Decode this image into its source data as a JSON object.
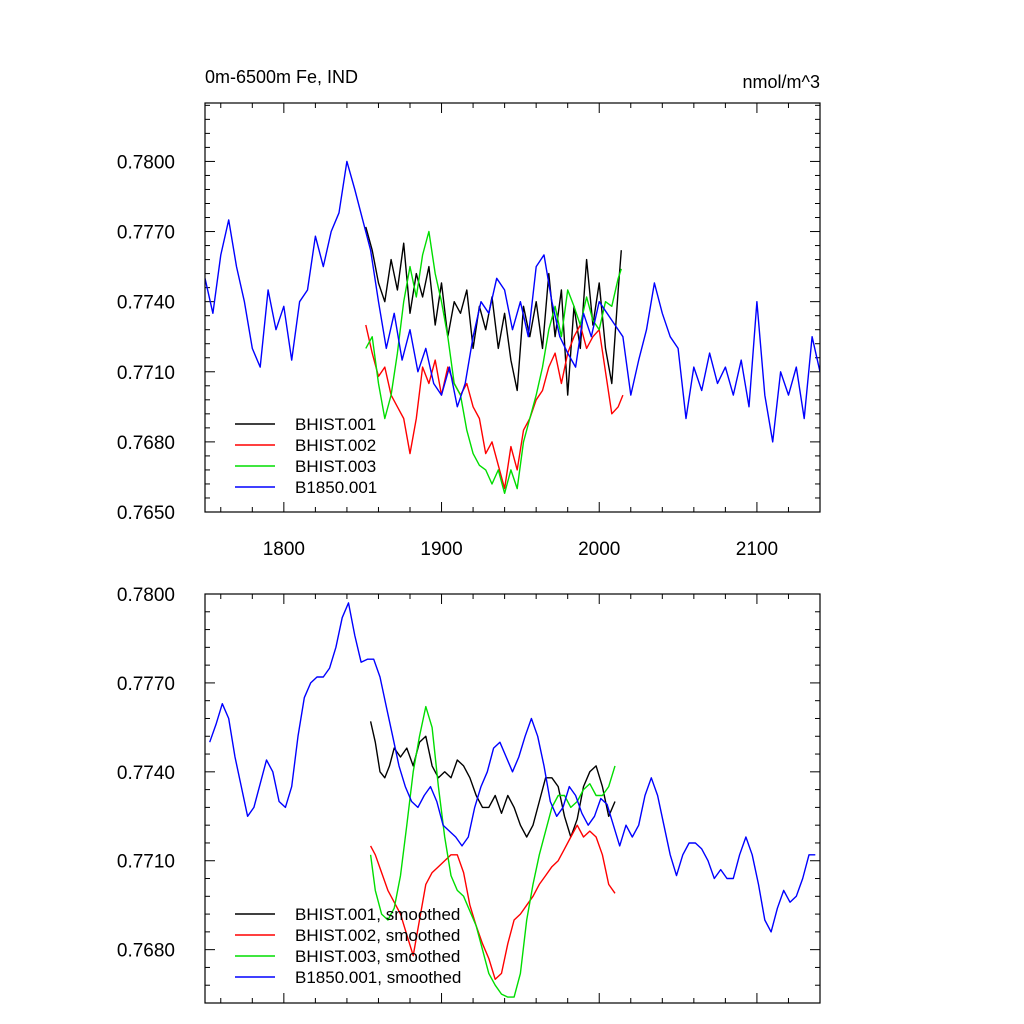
{
  "chart_data": [
    {
      "type": "line",
      "title": "0m-6500m Fe, IND",
      "units": "nmol/m^3",
      "xlim": [
        1750,
        2140
      ],
      "ylim": [
        0.765,
        0.7825
      ],
      "x_ticks": [
        1800,
        1900,
        2000,
        2100
      ],
      "x_tick_labels": [
        "1800",
        "1900",
        "2000",
        "2100"
      ],
      "y_ticks": [
        0.765,
        0.768,
        0.771,
        0.774,
        0.777,
        0.78
      ],
      "y_tick_labels": [
        "0.7650",
        "0.7680",
        "0.7710",
        "0.7740",
        "0.7770",
        "0.7800"
      ],
      "legend_position": "bottom-left",
      "series": [
        {
          "name": "BHIST.001",
          "color": "#000000",
          "x": [
            1852,
            1856,
            1860,
            1864,
            1868,
            1872,
            1876,
            1880,
            1884,
            1888,
            1892,
            1896,
            1900,
            1904,
            1908,
            1912,
            1916,
            1920,
            1924,
            1928,
            1932,
            1936,
            1940,
            1944,
            1948,
            1952,
            1956,
            1960,
            1964,
            1968,
            1972,
            1976,
            1980,
            1984,
            1988,
            1992,
            1996,
            2000,
            2004,
            2008,
            2012,
            2014
          ],
          "values": [
            0.7772,
            0.7762,
            0.7748,
            0.774,
            0.7758,
            0.7745,
            0.7765,
            0.7735,
            0.7752,
            0.7742,
            0.7755,
            0.773,
            0.7748,
            0.7725,
            0.774,
            0.7735,
            0.7745,
            0.772,
            0.7738,
            0.7728,
            0.7742,
            0.772,
            0.7735,
            0.7715,
            0.7702,
            0.7738,
            0.7725,
            0.774,
            0.772,
            0.7752,
            0.7725,
            0.7745,
            0.77,
            0.7738,
            0.772,
            0.7758,
            0.773,
            0.7748,
            0.772,
            0.7705,
            0.7745,
            0.7762
          ]
        },
        {
          "name": "BHIST.002",
          "color": "#ff0000",
          "x": [
            1852,
            1856,
            1860,
            1864,
            1868,
            1872,
            1876,
            1880,
            1884,
            1888,
            1892,
            1896,
            1900,
            1904,
            1908,
            1912,
            1916,
            1920,
            1924,
            1928,
            1932,
            1936,
            1940,
            1944,
            1948,
            1952,
            1956,
            1960,
            1964,
            1968,
            1972,
            1976,
            1980,
            1984,
            1988,
            1992,
            1996,
            2000,
            2004,
            2008,
            2012,
            2015
          ],
          "values": [
            0.773,
            0.7718,
            0.7708,
            0.7712,
            0.77,
            0.7695,
            0.769,
            0.7675,
            0.769,
            0.7712,
            0.7705,
            0.7715,
            0.77,
            0.7712,
            0.7705,
            0.77,
            0.7705,
            0.7695,
            0.769,
            0.7675,
            0.768,
            0.767,
            0.766,
            0.7678,
            0.7668,
            0.7685,
            0.769,
            0.7698,
            0.7702,
            0.7712,
            0.7718,
            0.7705,
            0.7718,
            0.7725,
            0.773,
            0.772,
            0.7725,
            0.7728,
            0.771,
            0.7692,
            0.7695,
            0.77
          ]
        },
        {
          "name": "BHIST.003",
          "color": "#00dd00",
          "x": [
            1852,
            1856,
            1860,
            1864,
            1868,
            1872,
            1876,
            1880,
            1884,
            1888,
            1892,
            1896,
            1900,
            1904,
            1908,
            1912,
            1916,
            1920,
            1924,
            1928,
            1932,
            1936,
            1940,
            1944,
            1948,
            1952,
            1956,
            1960,
            1964,
            1968,
            1972,
            1976,
            1980,
            1984,
            1988,
            1992,
            1996,
            2000,
            2004,
            2008,
            2012,
            2014
          ],
          "values": [
            0.772,
            0.7725,
            0.7705,
            0.769,
            0.77,
            0.7718,
            0.774,
            0.7755,
            0.7742,
            0.776,
            0.777,
            0.7752,
            0.774,
            0.7725,
            0.7705,
            0.77,
            0.7685,
            0.7675,
            0.767,
            0.7668,
            0.7662,
            0.7668,
            0.7658,
            0.7668,
            0.766,
            0.768,
            0.769,
            0.77,
            0.7712,
            0.7728,
            0.7738,
            0.7725,
            0.7745,
            0.7738,
            0.773,
            0.7742,
            0.7732,
            0.7728,
            0.774,
            0.7738,
            0.775,
            0.7754
          ]
        },
        {
          "name": "B1850.001",
          "color": "#0000ff",
          "x": [
            1750,
            1755,
            1760,
            1765,
            1770,
            1775,
            1780,
            1785,
            1790,
            1795,
            1800,
            1805,
            1810,
            1815,
            1820,
            1825,
            1830,
            1835,
            1840,
            1845,
            1850,
            1855,
            1860,
            1865,
            1870,
            1875,
            1880,
            1885,
            1890,
            1895,
            1900,
            1905,
            1910,
            1915,
            1920,
            1925,
            1930,
            1935,
            1940,
            1945,
            1950,
            1955,
            1960,
            1965,
            1970,
            1975,
            1980,
            1985,
            1990,
            1995,
            2000,
            2005,
            2010,
            2015,
            2020,
            2025,
            2030,
            2035,
            2040,
            2045,
            2050,
            2055,
            2060,
            2065,
            2070,
            2075,
            2080,
            2085,
            2090,
            2095,
            2100,
            2105,
            2110,
            2115,
            2120,
            2125,
            2130,
            2135,
            2140
          ],
          "values": [
            0.775,
            0.7735,
            0.776,
            0.7775,
            0.7755,
            0.774,
            0.772,
            0.7712,
            0.7745,
            0.7728,
            0.7738,
            0.7715,
            0.774,
            0.7745,
            0.7768,
            0.7755,
            0.777,
            0.7778,
            0.78,
            0.7788,
            0.7775,
            0.7762,
            0.774,
            0.772,
            0.7735,
            0.7715,
            0.7728,
            0.771,
            0.772,
            0.7705,
            0.77,
            0.7712,
            0.7695,
            0.7705,
            0.7725,
            0.774,
            0.7735,
            0.775,
            0.7745,
            0.7728,
            0.774,
            0.7725,
            0.7755,
            0.776,
            0.774,
            0.7725,
            0.7718,
            0.7712,
            0.7735,
            0.7725,
            0.774,
            0.7735,
            0.773,
            0.7725,
            0.77,
            0.7715,
            0.7728,
            0.7748,
            0.7735,
            0.7725,
            0.772,
            0.769,
            0.7712,
            0.7702,
            0.7718,
            0.7705,
            0.7712,
            0.77,
            0.7715,
            0.7695,
            0.774,
            0.77,
            0.768,
            0.771,
            0.77,
            0.7712,
            0.769,
            0.7725,
            0.771
          ]
        }
      ]
    },
    {
      "type": "line",
      "xlim": [
        1750,
        2140
      ],
      "ylim": [
        0.7662,
        0.78
      ],
      "x_ticks": [
        1800,
        1900,
        2000,
        2100
      ],
      "y_ticks": [
        0.768,
        0.771,
        0.774,
        0.777,
        0.78
      ],
      "y_tick_labels": [
        "0.7680",
        "0.7710",
        "0.7740",
        "0.7770",
        "0.7800"
      ],
      "legend_position": "bottom-left",
      "series": [
        {
          "name": "BHIST.001, smoothed",
          "color": "#000000",
          "x": [
            1855,
            1858,
            1861,
            1864,
            1867,
            1870,
            1874,
            1878,
            1882,
            1886,
            1890,
            1894,
            1898,
            1902,
            1906,
            1910,
            1914,
            1918,
            1922,
            1926,
            1930,
            1934,
            1938,
            1942,
            1946,
            1950,
            1954,
            1958,
            1962,
            1966,
            1970,
            1974,
            1978,
            1982,
            1986,
            1990,
            1994,
            1998,
            2002,
            2006,
            2010
          ],
          "values": [
            0.7757,
            0.775,
            0.774,
            0.7738,
            0.7742,
            0.7748,
            0.7745,
            0.7748,
            0.7742,
            0.775,
            0.7752,
            0.7742,
            0.7738,
            0.774,
            0.7738,
            0.7744,
            0.7742,
            0.7738,
            0.7732,
            0.7728,
            0.7728,
            0.7732,
            0.7726,
            0.7732,
            0.7728,
            0.7722,
            0.7718,
            0.7722,
            0.773,
            0.7738,
            0.7738,
            0.7735,
            0.7725,
            0.7718,
            0.7724,
            0.7735,
            0.774,
            0.7742,
            0.7735,
            0.7725,
            0.773
          ]
        },
        {
          "name": "BHIST.002, smoothed",
          "color": "#ff0000",
          "x": [
            1855,
            1858,
            1862,
            1866,
            1870,
            1874,
            1878,
            1882,
            1886,
            1890,
            1894,
            1898,
            1902,
            1906,
            1910,
            1914,
            1918,
            1922,
            1926,
            1930,
            1934,
            1938,
            1942,
            1946,
            1950,
            1954,
            1958,
            1962,
            1966,
            1970,
            1974,
            1978,
            1982,
            1986,
            1990,
            1994,
            1998,
            2002,
            2006,
            2010
          ],
          "values": [
            0.7715,
            0.7712,
            0.7706,
            0.77,
            0.7696,
            0.7692,
            0.7685,
            0.7678,
            0.769,
            0.7702,
            0.7706,
            0.7708,
            0.771,
            0.7712,
            0.7712,
            0.7706,
            0.7695,
            0.7688,
            0.7682,
            0.7677,
            0.767,
            0.7672,
            0.7682,
            0.769,
            0.7692,
            0.7695,
            0.7698,
            0.7702,
            0.7705,
            0.7708,
            0.771,
            0.7714,
            0.7718,
            0.7722,
            0.7718,
            0.772,
            0.7718,
            0.7712,
            0.7702,
            0.7699
          ]
        },
        {
          "name": "BHIST.003, smoothed",
          "color": "#00dd00",
          "x": [
            1855,
            1858,
            1862,
            1866,
            1870,
            1874,
            1878,
            1882,
            1886,
            1890,
            1894,
            1898,
            1902,
            1906,
            1910,
            1914,
            1918,
            1922,
            1926,
            1930,
            1934,
            1938,
            1942,
            1946,
            1950,
            1954,
            1958,
            1962,
            1966,
            1970,
            1974,
            1978,
            1982,
            1986,
            1990,
            1994,
            1998,
            2002,
            2006,
            2010
          ],
          "values": [
            0.7712,
            0.77,
            0.7692,
            0.769,
            0.7694,
            0.7705,
            0.7722,
            0.774,
            0.7752,
            0.7762,
            0.7755,
            0.7735,
            0.7718,
            0.7705,
            0.77,
            0.7698,
            0.7693,
            0.7688,
            0.768,
            0.7672,
            0.7668,
            0.7665,
            0.7664,
            0.7664,
            0.7672,
            0.769,
            0.7702,
            0.7712,
            0.772,
            0.7728,
            0.7732,
            0.7732,
            0.7728,
            0.773,
            0.7734,
            0.7736,
            0.7732,
            0.7732,
            0.7735,
            0.7742
          ]
        },
        {
          "name": "B1850.001, smoothed",
          "color": "#0000ff",
          "x": [
            1753,
            1757,
            1761,
            1765,
            1769,
            1773,
            1777,
            1781,
            1785,
            1789,
            1793,
            1797,
            1801,
            1805,
            1809,
            1813,
            1817,
            1821,
            1825,
            1829,
            1833,
            1837,
            1841,
            1845,
            1849,
            1853,
            1857,
            1861,
            1865,
            1869,
            1873,
            1877,
            1881,
            1885,
            1889,
            1893,
            1897,
            1901,
            1905,
            1909,
            1913,
            1917,
            1921,
            1925,
            1929,
            1933,
            1937,
            1941,
            1945,
            1949,
            1953,
            1957,
            1961,
            1965,
            1969,
            1973,
            1977,
            1981,
            1985,
            1989,
            1993,
            1997,
            2001,
            2005,
            2009,
            2013,
            2017,
            2021,
            2025,
            2029,
            2033,
            2037,
            2041,
            2045,
            2049,
            2053,
            2057,
            2061,
            2065,
            2069,
            2073,
            2077,
            2081,
            2085,
            2089,
            2093,
            2097,
            2101,
            2105,
            2109,
            2113,
            2117,
            2121,
            2125,
            2129,
            2133,
            2137
          ],
          "values": [
            0.775,
            0.7756,
            0.7763,
            0.7758,
            0.7745,
            0.7735,
            0.7725,
            0.7728,
            0.7736,
            0.7744,
            0.774,
            0.773,
            0.7728,
            0.7735,
            0.7752,
            0.7765,
            0.777,
            0.7772,
            0.7772,
            0.7775,
            0.7782,
            0.7792,
            0.7797,
            0.7786,
            0.7777,
            0.7778,
            0.7778,
            0.7772,
            0.7762,
            0.7752,
            0.7742,
            0.7735,
            0.773,
            0.7728,
            0.7732,
            0.7735,
            0.773,
            0.7722,
            0.772,
            0.7718,
            0.7715,
            0.7718,
            0.7728,
            0.7735,
            0.774,
            0.7748,
            0.775,
            0.7745,
            0.774,
            0.7745,
            0.7752,
            0.7758,
            0.7752,
            0.7742,
            0.773,
            0.7725,
            0.7728,
            0.7735,
            0.7732,
            0.7726,
            0.7722,
            0.7725,
            0.7731,
            0.7729,
            0.7722,
            0.7715,
            0.7722,
            0.7718,
            0.7722,
            0.7732,
            0.7738,
            0.7732,
            0.7722,
            0.7712,
            0.7705,
            0.7712,
            0.7716,
            0.7716,
            0.7714,
            0.771,
            0.7704,
            0.7707,
            0.7704,
            0.7704,
            0.7712,
            0.7718,
            0.7712,
            0.7702,
            0.769,
            0.7686,
            0.7694,
            0.77,
            0.7696,
            0.7698,
            0.7704,
            0.7712,
            0.7712
          ]
        }
      ]
    }
  ]
}
